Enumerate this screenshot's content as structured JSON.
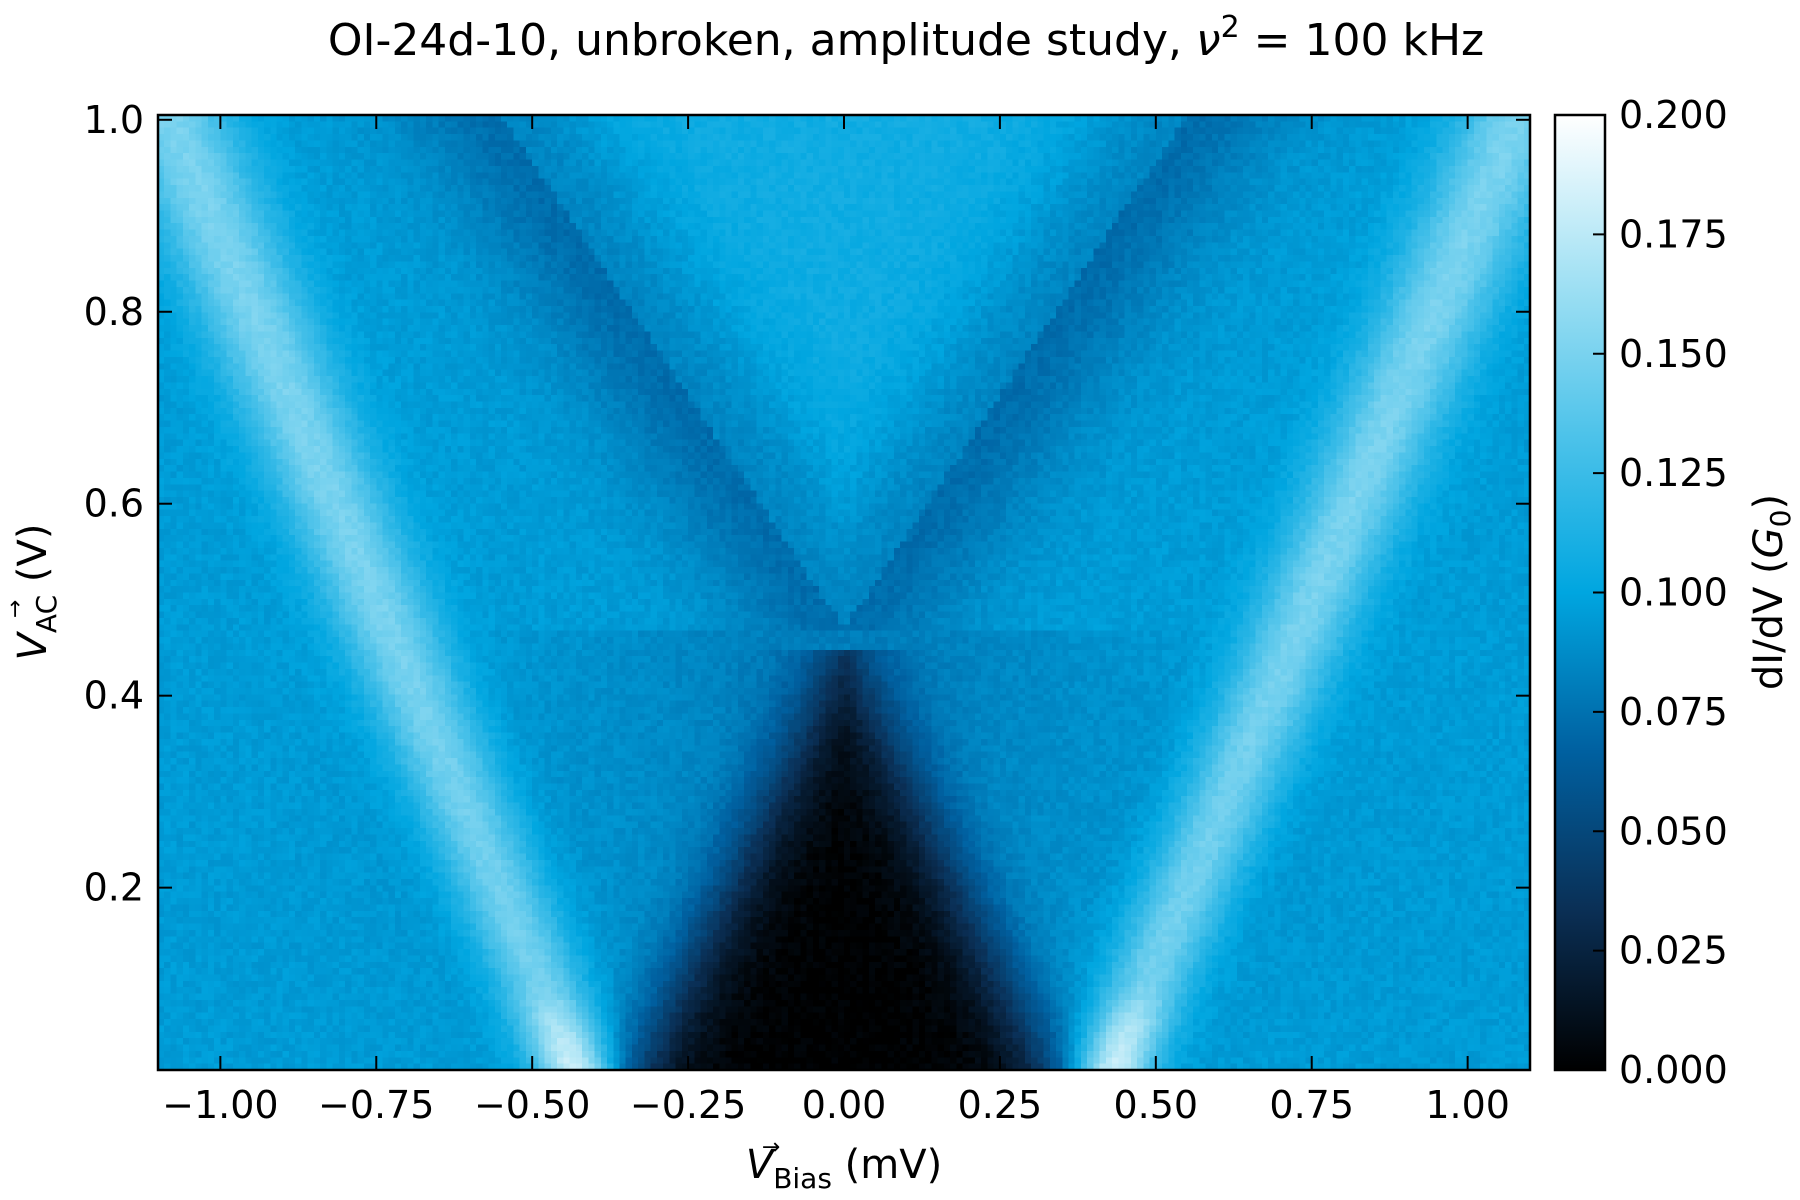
{
  "chart_data": {
    "type": "heatmap",
    "title": "OI-24d-10, unbroken, amplitude study, ν² = 100 kHz",
    "title_parts": [
      "OI-24d-10, unbroken, amplitude study, ",
      "ν",
      "2",
      " = 100 kHz"
    ],
    "xlabel": "V→Bias (mV)",
    "xlabel_parts": [
      "V",
      "Bias",
      " (mV)"
    ],
    "ylabel": "V→AC (V)",
    "ylabel_parts": [
      "V",
      "AC",
      " (V)"
    ],
    "xlim": [
      -1.1,
      1.1
    ],
    "ylim": [
      0.01,
      1.005
    ],
    "x_ticks": [
      -1.0,
      -0.75,
      -0.5,
      -0.25,
      0.0,
      0.25,
      0.5,
      0.75,
      1.0
    ],
    "x_tick_labels": [
      "−1.00",
      "−0.75",
      "−0.50",
      "−0.25",
      "0.00",
      "0.25",
      "0.50",
      "0.75",
      "1.00"
    ],
    "y_ticks": [
      0.2,
      0.4,
      0.6,
      0.8,
      1.0
    ],
    "y_tick_labels": [
      "0.2",
      "0.4",
      "0.6",
      "0.8",
      "1.0"
    ],
    "colorbar": {
      "label": "dI/dV (G₀)",
      "label_parts": [
        "dI/dV (",
        "G",
        "0",
        ")"
      ],
      "range": [
        0.0,
        0.2
      ],
      "ticks": [
        0.0,
        0.025,
        0.05,
        0.075,
        0.1,
        0.125,
        0.15,
        0.175,
        0.2
      ],
      "tick_labels": [
        "0.000",
        "0.025",
        "0.050",
        "0.075",
        "0.100",
        "0.125",
        "0.150",
        "0.175",
        "0.200"
      ],
      "colormap": "sequential blues (black → deep blue → cyan → white)",
      "colors": [
        "#000000",
        "#0a2f55",
        "#0060a0",
        "#00a6e0",
        "#4ec3ea",
        "#a5e2f4",
        "#ffffff"
      ]
    },
    "features": {
      "gap_triangle": {
        "value": 0.0,
        "x_halfwidth_at_bottom": 0.33,
        "apex_y": 0.45
      },
      "inner_lobes": {
        "value": 0.07,
        "apex_x": 0.0,
        "apex_y": 0.47,
        "outer_x_at_top": 0.55
      },
      "outer_bright_lines": {
        "value": 0.15,
        "x_at_bottom": 0.42,
        "x_at_top": 1.08,
        "peak_value_near_bottom": 0.2
      },
      "background_value": 0.095,
      "center_lobe_above_apex_value": 0.11
    }
  }
}
